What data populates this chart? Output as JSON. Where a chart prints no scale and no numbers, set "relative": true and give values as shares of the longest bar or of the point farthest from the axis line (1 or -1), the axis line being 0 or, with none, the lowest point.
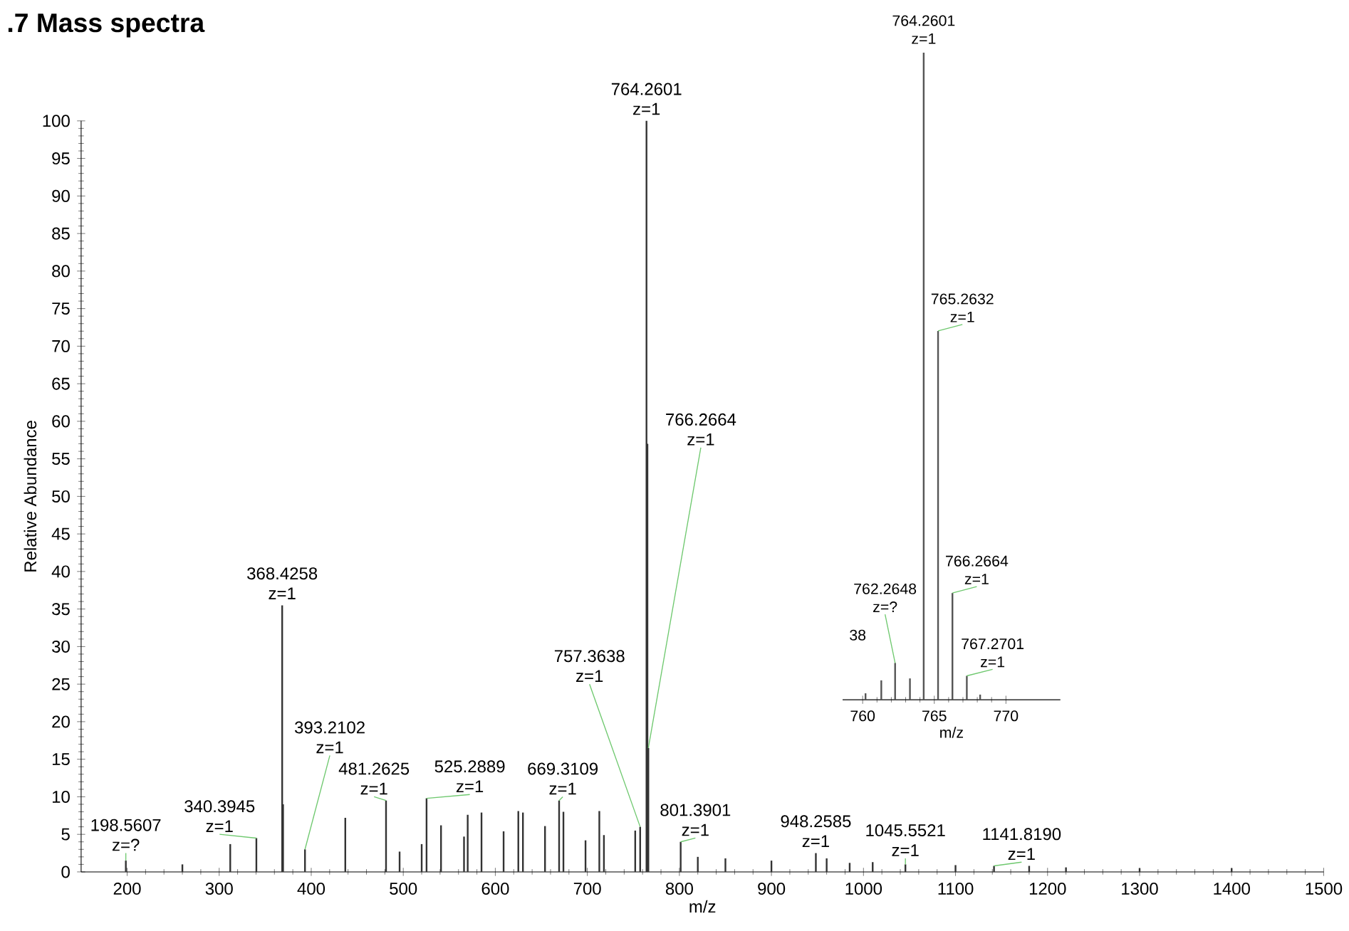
{
  "chart_data": [
    {
      "type": "bar",
      "title": ".7 Mass spectra",
      "xlabel": "m/z",
      "ylabel": "Relative Abundance",
      "x": [
        198.5607,
        260,
        312,
        340.3945,
        368.4258,
        369.4,
        393.2102,
        437,
        481.2625,
        496,
        520,
        525.2889,
        541,
        566,
        570,
        585,
        609,
        625,
        630,
        654,
        669.3109,
        674,
        698,
        713,
        718,
        752,
        757.3638,
        764.2601,
        765.2632,
        766.2664,
        801.3901,
        820,
        850,
        900,
        948.2585,
        960,
        985,
        1010,
        1045.5521,
        1100,
        1141.819,
        1180,
        1220,
        1300,
        1400
      ],
      "values": [
        1.5,
        1,
        3.7,
        4.5,
        35.5,
        9,
        3,
        7.2,
        9.5,
        2.7,
        3.7,
        9.8,
        6.2,
        4.7,
        7.6,
        7.9,
        5.4,
        8.1,
        7.9,
        6.1,
        9.5,
        8,
        4.2,
        8.1,
        4.9,
        5.5,
        6,
        100,
        57,
        16.5,
        4,
        2,
        1.8,
        1.5,
        2.5,
        1.8,
        1.2,
        1.3,
        1,
        0.9,
        0.8,
        0.8,
        0.6,
        0.5,
        0.5
      ],
      "color": "#333333",
      "xlim": [
        150,
        1500
      ],
      "xticks": [
        200,
        300,
        400,
        500,
        600,
        700,
        800,
        900,
        1000,
        1100,
        1200,
        1300,
        1400,
        1500
      ],
      "ylim": [
        0,
        100
      ],
      "yticks": [
        0,
        5,
        10,
        15,
        20,
        25,
        30,
        35,
        40,
        45,
        50,
        55,
        60,
        65,
        70,
        75,
        80,
        85,
        90,
        95,
        100
      ],
      "annotations": [
        {
          "text": "198.5607 z=?",
          "x": 198.5607,
          "y": 1.5
        },
        {
          "text": "340.3945 z=1",
          "x": 340.3945,
          "y": 4.5
        },
        {
          "text": "368.4258 z=1",
          "x": 368.4258,
          "y": 35.5
        },
        {
          "text": "393.2102 z=1",
          "x": 393.2102,
          "y": 3
        },
        {
          "text": "481.2625 z=1",
          "x": 481.2625,
          "y": 9.5
        },
        {
          "text": "525.2889 z=1",
          "x": 525.2889,
          "y": 9.8
        },
        {
          "text": "669.3109 z=1",
          "x": 669.3109,
          "y": 9.5
        },
        {
          "text": "757.3638 z=1",
          "x": 757.3638,
          "y": 6
        },
        {
          "text": "764.2601 z=1",
          "x": 764.2601,
          "y": 100
        },
        {
          "text": "766.2664 z=1",
          "x": 766.2664,
          "y": 16.5
        },
        {
          "text": "801.3901 z=1",
          "x": 801.3901,
          "y": 4
        },
        {
          "text": "948.2585 z=1",
          "x": 948.2585,
          "y": 2.5
        },
        {
          "text": "1045.5521 z=1",
          "x": 1045.5521,
          "y": 1
        },
        {
          "text": "1141.8190 z=1",
          "x": 1141.819,
          "y": 0.8
        }
      ]
    },
    {
      "type": "bar",
      "xlabel": "m/z",
      "relative": true,
      "x": [
        760.2,
        761.3,
        762.2648,
        763.3,
        764.2601,
        765.2632,
        766.2664,
        767.2701,
        768.2
      ],
      "values": [
        0.01,
        0.03,
        0.057,
        0.033,
        1,
        0.57,
        0.165,
        0.037,
        0.008
      ],
      "color": "#555555",
      "xlim": [
        758.6,
        773.8
      ],
      "xticks": [
        760,
        765,
        770
      ],
      "annotations": [
        {
          "text": "764.2601 z=1",
          "x": 764.2601,
          "y": 1
        },
        {
          "text": "765.2632 z=1",
          "x": 765.2632,
          "y": 0.57
        },
        {
          "text": "766.2664 z=1",
          "x": 766.2664,
          "y": 0.165
        },
        {
          "text": "767.2701 z=1",
          "x": 767.2701,
          "y": 0.037
        },
        {
          "text": "762.2648 z=?",
          "x": 762.2648,
          "y": 0.057
        },
        "38"
      ]
    }
  ]
}
